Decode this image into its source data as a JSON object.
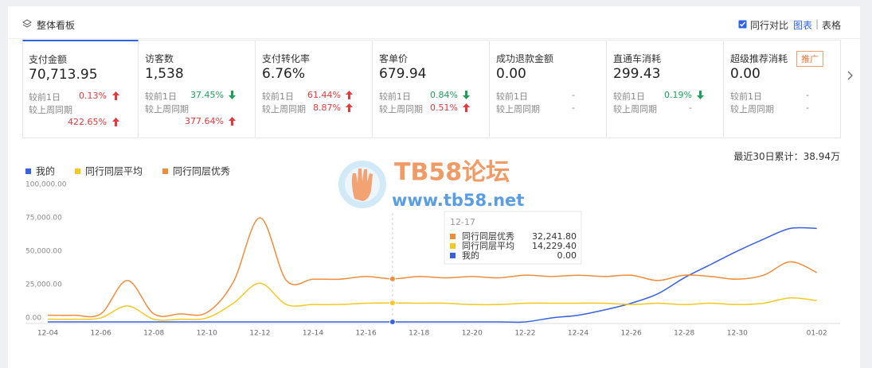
{
  "header": {
    "title": "整体看板",
    "compare": "同行对比",
    "views": [
      "图表",
      "表格"
    ]
  },
  "metrics": [
    {
      "name": "支付金额",
      "value": "70,713.95",
      "selected": true,
      "day_label": "较前1日",
      "day_change": "0.13%",
      "day_trend": "up",
      "week_label": "较上周同期",
      "week_change": "422.65%",
      "week_trend": "up"
    },
    {
      "name": "访客数",
      "value": "1,538",
      "day_label": "较前1日",
      "day_change": "37.45%",
      "day_trend": "down",
      "week_label": "较上周同期",
      "week_change": "377.64%",
      "week_trend": "up"
    },
    {
      "name": "支付转化率",
      "value": "6.76%",
      "day_label": "较前1日",
      "day_change": "61.44%",
      "day_trend": "up",
      "week_label": "较上周同期",
      "week_change": "8.87%",
      "week_trend": "up"
    },
    {
      "name": "客单价",
      "value": "679.94",
      "day_label": "较前1日",
      "day_change": "0.84%",
      "day_trend": "down",
      "week_label": "较上周同期",
      "week_change": "0.51%",
      "week_trend": "up"
    },
    {
      "name": "成功退款金额",
      "value": "0.00",
      "day_label": "较前1日",
      "day_change": "-",
      "day_trend": null,
      "week_label": "较上周同期",
      "week_change": "-",
      "week_trend": null
    },
    {
      "name": "直通车消耗",
      "value": "299.43",
      "day_label": "较前1日",
      "day_change": "0.19%",
      "day_trend": "down",
      "week_label": "较上周同期",
      "week_change": "-",
      "week_trend": null
    },
    {
      "name": "超级推荐消耗",
      "value": "0.00",
      "badge": "推广",
      "day_label": "较前1日",
      "day_change": "-",
      "day_trend": null,
      "week_label": "较上周同期",
      "week_change": "-",
      "week_trend": null
    }
  ],
  "summary": "最近30日累计：38.94万",
  "watermark": {
    "title": "TB58论坛",
    "url": "www.tb58.net"
  },
  "chart_data": {
    "type": "line",
    "categories": [
      "12-04",
      null,
      "12-06",
      null,
      "12-08",
      null,
      "12-10",
      null,
      "12-12",
      null,
      "12-14",
      null,
      "12-16",
      null,
      "12-18",
      null,
      "12-20",
      null,
      "12-22",
      null,
      "12-24",
      null,
      "12-26",
      null,
      "12-28",
      null,
      "12-30",
      null,
      null,
      "01-02"
    ],
    "series": [
      {
        "name": "我的",
        "color": "#3761e0",
        "values": [
          0,
          0,
          0,
          0,
          0,
          0,
          0,
          0,
          0,
          0,
          0,
          0,
          0,
          0,
          0,
          0,
          0,
          0,
          0,
          3000,
          5000,
          9000,
          14000,
          21000,
          33000,
          43000,
          53000,
          62000,
          70000,
          70000
        ]
      },
      {
        "name": "同行同层平均",
        "color": "#f5c820",
        "values": [
          2000,
          2000,
          3000,
          12000,
          2000,
          2000,
          3000,
          14000,
          29000,
          13000,
          13000,
          13000,
          14000,
          14229.4,
          14000,
          14000,
          13000,
          13000,
          14000,
          14000,
          14000,
          14000,
          13000,
          14000,
          13000,
          14000,
          13000,
          14000,
          18000,
          16000
        ]
      },
      {
        "name": "同行同层优秀",
        "color": "#f08c3a",
        "values": [
          5000,
          5000,
          6000,
          31000,
          6000,
          6000,
          7000,
          30000,
          78000,
          31000,
          32000,
          32000,
          34000,
          32241.8,
          34000,
          33000,
          34000,
          33000,
          35000,
          34000,
          35000,
          34000,
          35000,
          31000,
          35000,
          34000,
          32000,
          35000,
          45000,
          37000
        ]
      }
    ],
    "ylim": [
      0,
      100000
    ],
    "yticks": [
      {
        "value": 0,
        "label": "0.00"
      },
      {
        "value": 25000,
        "label": "25,000.00"
      },
      {
        "value": 50000,
        "label": "50,000.00"
      },
      {
        "value": 75000,
        "label": "75,000.00"
      },
      {
        "value": 100000,
        "label": "100,000.00"
      }
    ],
    "grid": false,
    "legend": "top-left",
    "tooltip": {
      "title": "12-17",
      "labels": [
        "0.00",
        "14,229.40",
        "32,241.80"
      ]
    }
  }
}
